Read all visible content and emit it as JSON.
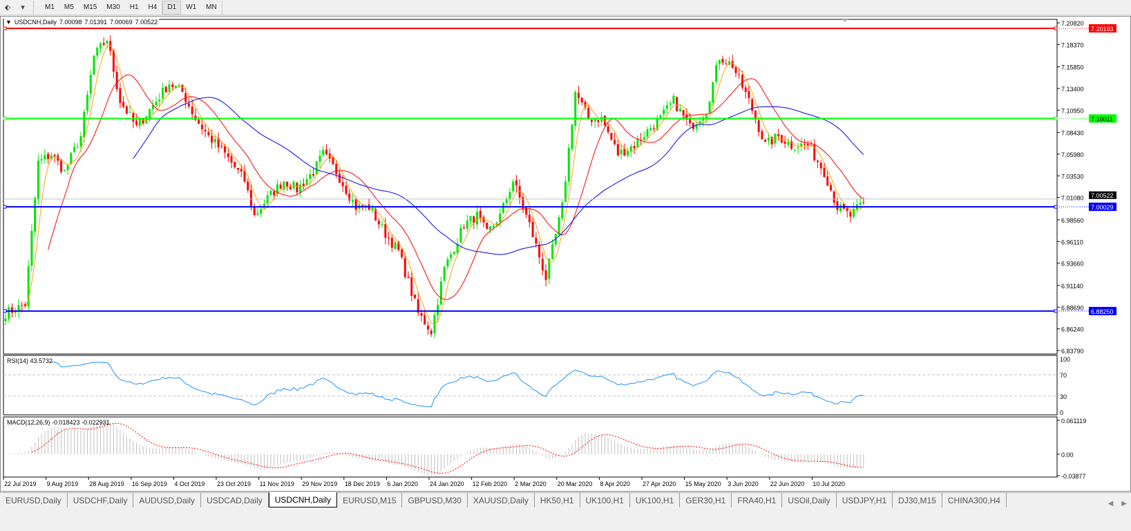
{
  "toolbar": {
    "timeframes": [
      "M1",
      "M5",
      "M15",
      "M30",
      "H1",
      "H4",
      "D1",
      "W1",
      "MN"
    ],
    "active": "D1"
  },
  "chart": {
    "symbol_label": "USDCNH,Daily",
    "ohlc": [
      "7.00098",
      "7.01391",
      "7.00069",
      "7.00522"
    ]
  },
  "price_axis": {
    "ticks": [
      "7.20820",
      "7.18370",
      "7.15850",
      "7.13400",
      "7.10950",
      "7.08430",
      "7.05980",
      "7.03530",
      "7.01080",
      "6.98560",
      "6.96110",
      "6.93660",
      "6.91140",
      "6.88690",
      "6.86240",
      "6.83790"
    ]
  },
  "levels": [
    {
      "price": "7.20193",
      "color": "#ff0000"
    },
    {
      "price": "7.10011",
      "color": "#00ff00"
    },
    {
      "price": "7.00029",
      "color": "#0000ff"
    },
    {
      "price": "6.88250",
      "color": "#0000ff"
    }
  ],
  "current_price": "7.00522",
  "rsi": {
    "label": "RSI(14) 43.5732",
    "ticks": [
      "100",
      "70",
      "30",
      "0"
    ]
  },
  "macd": {
    "label": "MACD(12,26,9) -0.018423 -0.022931",
    "ticks": [
      "0.061119",
      "0.00",
      "-0.03877"
    ]
  },
  "date_axis": [
    "22 Jul 2019",
    "9 Aug 2019",
    "28 Aug 2019",
    "16 Sep 2019",
    "4 Oct 2019",
    "23 Oct 2019",
    "11 Nov 2019",
    "29 Nov 2019",
    "18 Dec 2019",
    "6 Jan 2020",
    "24 Jan 2020",
    "12 Feb 2020",
    "2 Mar 2020",
    "20 Mar 2020",
    "8 Apr 2020",
    "27 Apr 2020",
    "15 May 2020",
    "3 Jun 2020",
    "22 Jun 2020",
    "10 Jul 2020"
  ],
  "tabs": [
    "EURUSD,Daily",
    "USDCHF,Daily",
    "AUDUSD,Daily",
    "USDCAD,Daily",
    "USDCNH,Daily",
    "EURUSD,M15",
    "GBPUSD,M30",
    "XAUUSD,Daily",
    "HK50,H1",
    "UK100,H1",
    "UK100,H1",
    "GER30,H1",
    "FRA40,H1",
    "USOil,Daily",
    "USDJPY,H1",
    "DJ30,M15",
    "CHINA300,H4"
  ],
  "active_tab": "USDCNH,Daily",
  "colors": {
    "bull": "#00e600",
    "bear": "#ff0000",
    "ma_fast": "#ffa500",
    "ma_mid": "#ff0000",
    "ma_slow": "#0000ff",
    "rsi": "#1e90ff",
    "macd_hist": "#c0c0c0",
    "macd_signal": "#ff0000"
  },
  "chart_data": {
    "type": "candlestick",
    "symbol": "USDCNH",
    "timeframe": "Daily",
    "ylim": [
      6.8379,
      7.2082
    ],
    "close_anchors": [
      [
        "2019-07-22",
        6.88
      ],
      [
        "2019-07-30",
        6.89
      ],
      [
        "2019-08-05",
        7.05
      ],
      [
        "2019-08-09",
        7.06
      ],
      [
        "2019-08-15",
        7.04
      ],
      [
        "2019-08-22",
        7.08
      ],
      [
        "2019-08-28",
        7.17
      ],
      [
        "2019-09-03",
        7.19
      ],
      [
        "2019-09-09",
        7.12
      ],
      [
        "2019-09-16",
        7.09
      ],
      [
        "2019-09-24",
        7.12
      ],
      [
        "2019-09-30",
        7.14
      ],
      [
        "2019-10-04",
        7.13
      ],
      [
        "2019-10-10",
        7.1
      ],
      [
        "2019-10-16",
        7.08
      ],
      [
        "2019-10-23",
        7.06
      ],
      [
        "2019-10-31",
        7.03
      ],
      [
        "2019-11-05",
        6.99
      ],
      [
        "2019-11-11",
        7.01
      ],
      [
        "2019-11-18",
        7.03
      ],
      [
        "2019-11-22",
        7.02
      ],
      [
        "2019-11-29",
        7.04
      ],
      [
        "2019-12-04",
        7.06
      ],
      [
        "2019-12-10",
        7.04
      ],
      [
        "2019-12-18",
        7.0
      ],
      [
        "2019-12-24",
        7.0
      ],
      [
        "2019-12-31",
        6.97
      ],
      [
        "2020-01-06",
        6.95
      ],
      [
        "2020-01-14",
        6.88
      ],
      [
        "2020-01-20",
        6.86
      ],
      [
        "2020-01-24",
        6.93
      ],
      [
        "2020-02-03",
        6.98
      ],
      [
        "2020-02-07",
        6.99
      ],
      [
        "2020-02-12",
        6.97
      ],
      [
        "2020-02-18",
        6.99
      ],
      [
        "2020-02-24",
        7.03
      ],
      [
        "2020-03-02",
        6.98
      ],
      [
        "2020-03-09",
        6.92
      ],
      [
        "2020-03-16",
        7.0
      ],
      [
        "2020-03-20",
        7.13
      ],
      [
        "2020-03-26",
        7.1
      ],
      [
        "2020-04-01",
        7.1
      ],
      [
        "2020-04-08",
        7.06
      ],
      [
        "2020-04-15",
        7.07
      ],
      [
        "2020-04-22",
        7.09
      ],
      [
        "2020-04-27",
        7.1
      ],
      [
        "2020-05-01",
        7.12
      ],
      [
        "2020-05-08",
        7.09
      ],
      [
        "2020-05-15",
        7.11
      ],
      [
        "2020-05-21",
        7.17
      ],
      [
        "2020-05-27",
        7.16
      ],
      [
        "2020-06-03",
        7.12
      ],
      [
        "2020-06-10",
        7.07
      ],
      [
        "2020-06-16",
        7.08
      ],
      [
        "2020-06-22",
        7.07
      ],
      [
        "2020-06-29",
        7.07
      ],
      [
        "2020-07-06",
        7.04
      ],
      [
        "2020-07-10",
        7.0
      ],
      [
        "2020-07-16",
        6.99
      ],
      [
        "2020-07-22",
        7.00522
      ]
    ]
  }
}
